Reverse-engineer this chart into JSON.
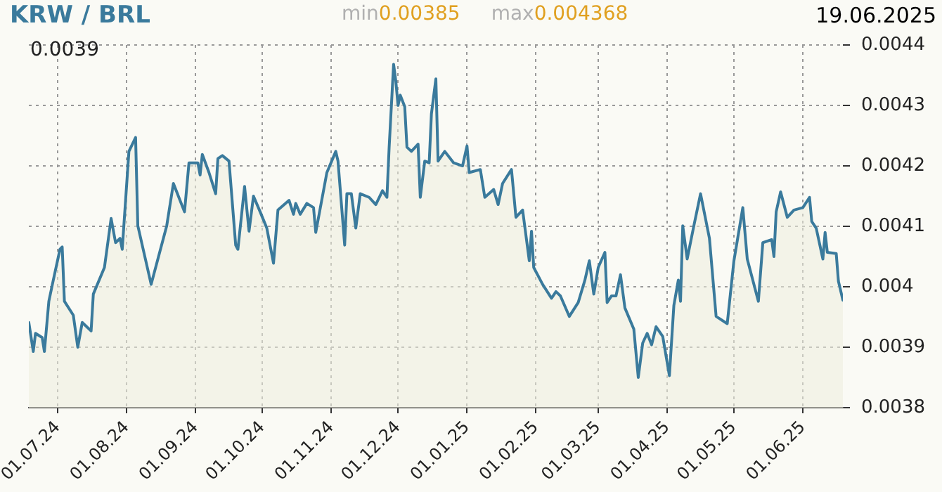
{
  "chart_data": {
    "type": "area",
    "title": "KRW / BRL",
    "annotations": [
      "min",
      "0.00385",
      "max",
      "0.004368",
      "19.06.2025",
      "0.0039"
    ],
    "x": [
      "2024-06-18",
      "2024-06-20",
      "2024-06-21",
      "2024-06-24",
      "2024-06-25",
      "2024-06-27",
      "2024-06-29",
      "2024-07-02",
      "2024-07-03",
      "2024-07-04",
      "2024-07-08",
      "2024-07-10",
      "2024-07-12",
      "2024-07-16",
      "2024-07-17",
      "2024-07-22",
      "2024-07-25",
      "2024-07-27",
      "2024-07-29",
      "2024-07-30",
      "2024-08-02",
      "2024-08-05",
      "2024-08-06",
      "2024-08-12",
      "2024-08-19",
      "2024-08-22",
      "2024-08-27",
      "2024-08-29",
      "2024-09-02",
      "2024-09-03",
      "2024-09-04",
      "2024-09-07",
      "2024-09-10",
      "2024-09-11",
      "2024-09-13",
      "2024-09-16",
      "2024-09-19",
      "2024-09-20",
      "2024-09-23",
      "2024-09-25",
      "2024-09-27",
      "2024-09-30",
      "2024-10-03",
      "2024-10-06",
      "2024-10-08",
      "2024-10-13",
      "2024-10-15",
      "2024-10-16",
      "2024-10-18",
      "2024-10-21",
      "2024-10-24",
      "2024-10-25",
      "2024-10-30",
      "2024-11-03",
      "2024-11-04",
      "2024-11-07",
      "2024-11-08",
      "2024-11-10",
      "2024-11-12",
      "2024-11-14",
      "2024-11-18",
      "2024-11-21",
      "2024-11-24",
      "2024-11-26",
      "2024-11-27",
      "2024-11-29",
      "2024-11-30",
      "2024-12-01",
      "2024-12-02",
      "2024-12-04",
      "2024-12-05",
      "2024-12-07",
      "2024-12-10",
      "2024-12-11",
      "2024-12-13",
      "2024-12-15",
      "2024-12-16",
      "2024-12-18",
      "2024-12-19",
      "2024-12-22",
      "2024-12-26",
      "2024-12-30",
      "2025-01-01",
      "2025-01-02",
      "2025-01-07",
      "2025-01-09",
      "2025-01-13",
      "2025-01-15",
      "2025-01-17",
      "2025-01-21",
      "2025-01-23",
      "2025-01-26",
      "2025-01-29",
      "2025-01-30",
      "2025-01-31",
      "2025-02-04",
      "2025-02-08",
      "2025-02-10",
      "2025-02-12",
      "2025-02-16",
      "2025-02-20",
      "2025-02-23",
      "2025-02-25",
      "2025-02-27",
      "2025-03-01",
      "2025-03-04",
      "2025-03-05",
      "2025-03-07",
      "2025-03-09",
      "2025-03-11",
      "2025-03-13",
      "2025-03-17",
      "2025-03-19",
      "2025-03-21",
      "2025-03-23",
      "2025-03-25",
      "2025-03-27",
      "2025-03-30",
      "2025-04-02",
      "2025-04-04",
      "2025-04-06",
      "2025-04-07",
      "2025-04-08",
      "2025-04-10",
      "2025-04-13",
      "2025-04-16",
      "2025-04-20",
      "2025-04-23",
      "2025-04-28",
      "2025-05-01",
      "2025-05-05",
      "2025-05-07",
      "2025-05-12",
      "2025-05-14",
      "2025-05-18",
      "2025-05-19",
      "2025-05-20",
      "2025-05-22",
      "2025-05-25",
      "2025-05-28",
      "2025-06-01",
      "2025-06-04",
      "2025-06-05",
      "2025-06-07",
      "2025-06-10",
      "2025-06-11",
      "2025-06-12",
      "2025-06-16",
      "2025-06-17",
      "2025-06-19"
    ],
    "series": [
      {
        "color": "#3a7a9c",
        "values": [
          0.003941,
          0.003893,
          0.003923,
          0.003916,
          0.003893,
          0.003976,
          0.004011,
          0.004062,
          0.004066,
          0.003976,
          0.003953,
          0.0039,
          0.003941,
          0.003927,
          0.003988,
          0.004032,
          0.004113,
          0.004073,
          0.00408,
          0.004062,
          0.004224,
          0.004247,
          0.004101,
          0.004004,
          0.004101,
          0.004171,
          0.004124,
          0.004205,
          0.004205,
          0.004185,
          0.004219,
          0.004189,
          0.004154,
          0.004212,
          0.004217,
          0.004208,
          0.004069,
          0.004062,
          0.004166,
          0.004092,
          0.00415,
          0.004124,
          0.004097,
          0.004039,
          0.004127,
          0.004143,
          0.00412,
          0.004138,
          0.00412,
          0.004138,
          0.004131,
          0.00409,
          0.004189,
          0.004224,
          0.004208,
          0.004069,
          0.004154,
          0.004154,
          0.004097,
          0.004154,
          0.004148,
          0.004136,
          0.004159,
          0.004148,
          0.004231,
          0.004368,
          0.00434,
          0.0043,
          0.004317,
          0.004298,
          0.004231,
          0.004224,
          0.004236,
          0.004148,
          0.004208,
          0.004205,
          0.004286,
          0.004344,
          0.004208,
          0.004224,
          0.004205,
          0.0042,
          0.004233,
          0.004189,
          0.004194,
          0.004148,
          0.004161,
          0.004136,
          0.004171,
          0.004194,
          0.004115,
          0.004127,
          0.004043,
          0.004092,
          0.004032,
          0.004004,
          0.003981,
          0.003992,
          0.003985,
          0.003951,
          0.003974,
          0.004011,
          0.004043,
          0.003988,
          0.004032,
          0.004057,
          0.003974,
          0.003985,
          0.003985,
          0.00402,
          0.003965,
          0.00393,
          0.00385,
          0.003907,
          0.003923,
          0.003904,
          0.003934,
          0.003918,
          0.003853,
          0.003969,
          0.004011,
          0.003976,
          0.004101,
          0.004046,
          0.004101,
          0.004154,
          0.00408,
          0.003951,
          0.003939,
          0.004043,
          0.004131,
          0.004046,
          0.003976,
          0.004073,
          0.004078,
          0.00405,
          0.004124,
          0.004157,
          0.004115,
          0.004127,
          0.004131,
          0.004148,
          0.004108,
          0.004097,
          0.004046,
          0.00409,
          0.004057,
          0.004055,
          0.004009,
          0.003978
        ]
      }
    ],
    "xlim": [
      "2024-06-18",
      "2025-06-19"
    ],
    "xticks": [
      {
        "value": "2024-07-01",
        "label": "01.07.24"
      },
      {
        "value": "2024-08-01",
        "label": "01.08.24"
      },
      {
        "value": "2024-09-01",
        "label": "01.09.24"
      },
      {
        "value": "2024-10-01",
        "label": "01.10.24"
      },
      {
        "value": "2024-11-01",
        "label": "01.11.24"
      },
      {
        "value": "2024-12-01",
        "label": "01.12.24"
      },
      {
        "value": "2025-01-01",
        "label": "01.01.25"
      },
      {
        "value": "2025-02-01",
        "label": "01.02.25"
      },
      {
        "value": "2025-03-01",
        "label": "01.03.25"
      },
      {
        "value": "2025-04-01",
        "label": "01.04.25"
      },
      {
        "value": "2025-05-01",
        "label": "01.05.25"
      },
      {
        "value": "2025-06-01",
        "label": "01.06.25"
      }
    ],
    "ylim": [
      0.0038,
      0.0044
    ],
    "yticks": [
      0.0038,
      0.0039,
      0.004,
      0.0041,
      0.0042,
      0.0043,
      0.0044
    ],
    "grid": true,
    "legend": false,
    "marker": "none",
    "line_style": "solid"
  }
}
